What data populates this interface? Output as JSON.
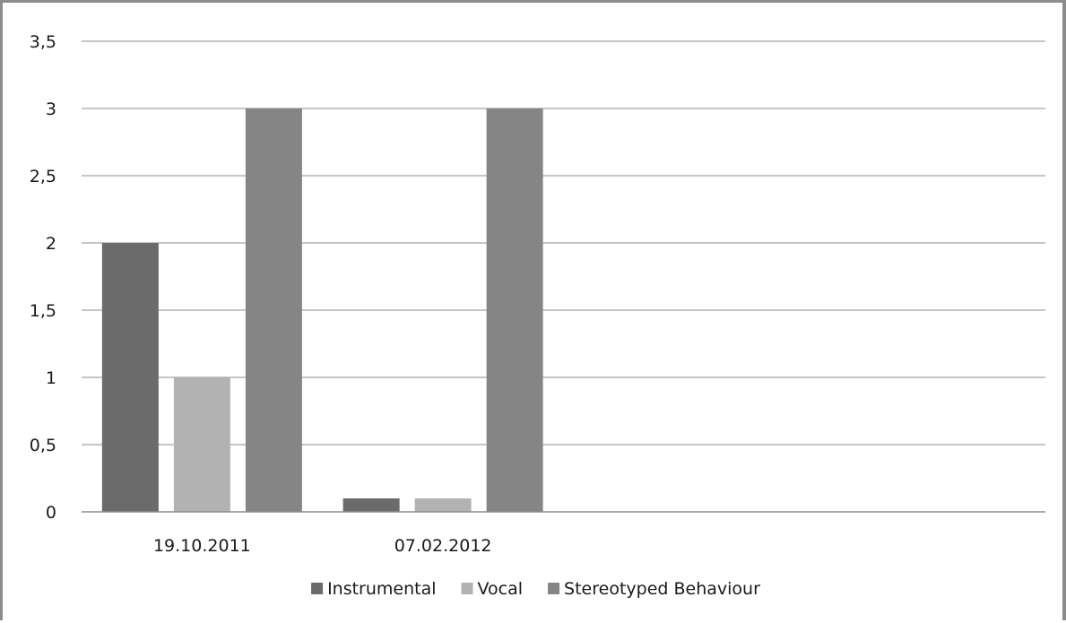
{
  "chart_data": {
    "type": "bar",
    "categories": [
      "19.10.2011",
      "07.02.2012"
    ],
    "series": [
      {
        "name": "Instrumental",
        "values": [
          2,
          0.1
        ],
        "color": "#6b6b6b"
      },
      {
        "name": "Vocal",
        "values": [
          1,
          0.1
        ],
        "color": "#b2b2b2"
      },
      {
        "name": "Stereotyped Behaviour",
        "values": [
          3,
          3
        ],
        "color": "#858585"
      }
    ],
    "ylim": [
      0,
      3.5
    ],
    "y_ticks": [
      "0",
      "0,5",
      "1",
      "1,5",
      "2",
      "2,5",
      "3",
      "3,5"
    ],
    "grid": true,
    "legend_position": "bottom",
    "title": "",
    "xlabel": "",
    "ylabel": ""
  }
}
